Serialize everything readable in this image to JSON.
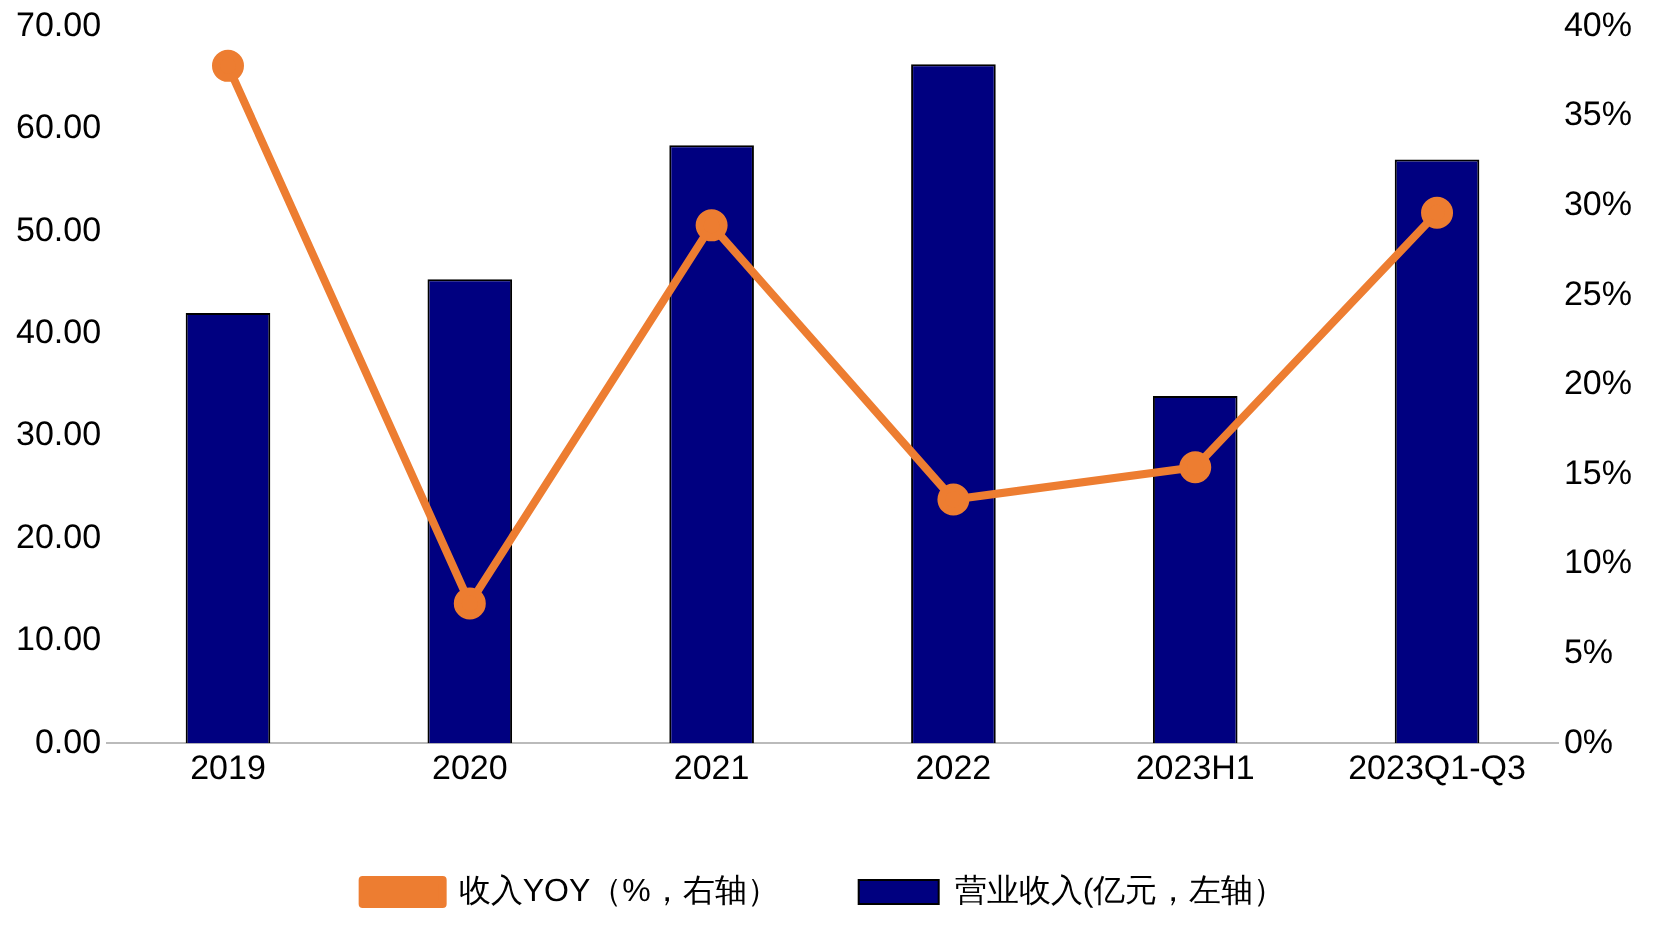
{
  "chart_data": {
    "type": "bar",
    "categories": [
      "2019",
      "2020",
      "2021",
      "2022",
      "2023H1",
      "2023Q1-Q3"
    ],
    "series": [
      {
        "name": "营业收入(亿元，左轴）",
        "color": "#000080",
        "values": [
          42.0,
          45.3,
          58.4,
          66.3,
          33.9,
          57.0
        ]
      },
      {
        "name": "收入YOY（%，右轴）",
        "type": "line",
        "axis": "y2",
        "color": "#ed7d31",
        "marker": "circle",
        "values": [
          37.8,
          7.8,
          28.9,
          13.6,
          15.4,
          29.6
        ]
      }
    ],
    "ylim": [
      0,
      70
    ],
    "yticks": [
      {
        "value": 0,
        "label": "0.00"
      },
      {
        "value": 10,
        "label": "10.00"
      },
      {
        "value": 20,
        "label": "20.00"
      },
      {
        "value": 30,
        "label": "30.00"
      },
      {
        "value": 40,
        "label": "40.00"
      },
      {
        "value": 50,
        "label": "50.00"
      },
      {
        "value": 60,
        "label": "60.00"
      },
      {
        "value": 70,
        "label": "70.00"
      }
    ],
    "y2lim": [
      0,
      40
    ],
    "y2ticks": [
      {
        "value": 0,
        "label": "0%"
      },
      {
        "value": 5,
        "label": "5%"
      },
      {
        "value": 10,
        "label": "10%"
      },
      {
        "value": 15,
        "label": "15%"
      },
      {
        "value": 20,
        "label": "20%"
      },
      {
        "value": 25,
        "label": "25%"
      },
      {
        "value": 30,
        "label": "30%"
      },
      {
        "value": 35,
        "label": "35%"
      },
      {
        "value": 40,
        "label": "40%"
      }
    ],
    "grid": false,
    "legend": "bottom"
  }
}
